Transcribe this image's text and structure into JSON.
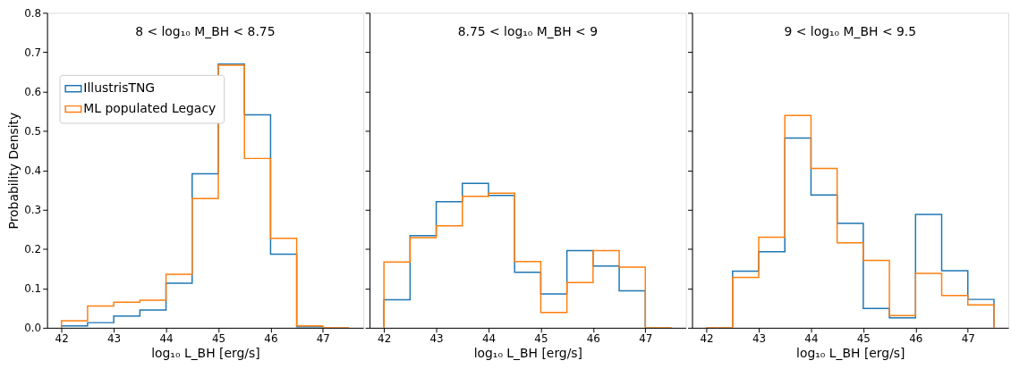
{
  "chart_data": [
    {
      "type": "histogram",
      "title": "8 < log₁₀ M_BH < 8.75",
      "xlabel": "log₁₀ L_BH  [erg/s]",
      "ylabel": "Probability Density",
      "bins": [
        42,
        42.5,
        43,
        43.5,
        44,
        44.5,
        45,
        45.5,
        46,
        46.5,
        47,
        47.5
      ],
      "series": [
        {
          "name": "IllustrisTNG",
          "color": "#1f77b4",
          "values": [
            0.005,
            0.013,
            0.03,
            0.045,
            0.113,
            0.391,
            0.67,
            0.541,
            0.187,
            0.002,
            0.0
          ]
        },
        {
          "name": "ML populated Legacy",
          "color": "#ff7f0e",
          "values": [
            0.018,
            0.055,
            0.065,
            0.07,
            0.136,
            0.328,
            0.667,
            0.43,
            0.227,
            0.005,
            0.0
          ]
        }
      ],
      "xlim": [
        41.725,
        47.775
      ],
      "ylim": [
        0,
        0.8
      ],
      "xticks": [
        42,
        43,
        44,
        45,
        46,
        47
      ],
      "yticks": [
        {
          "value": 0,
          "label": "0.0"
        },
        {
          "value": 0.1,
          "label": "0.1"
        },
        {
          "value": 0.2,
          "label": "0.2"
        },
        {
          "value": 0.3,
          "label": "0.3"
        },
        {
          "value": 0.4,
          "label": "0.4"
        },
        {
          "value": 0.5,
          "label": "0.5"
        },
        {
          "value": 0.6,
          "label": "0.6"
        },
        {
          "value": 0.7,
          "label": "0.7"
        },
        {
          "value": 0.8,
          "label": "0.8"
        }
      ],
      "legend": "top left"
    },
    {
      "type": "histogram",
      "title": "8.75 < log₁₀ M_BH < 9",
      "xlabel": "log₁₀ L_BH  [erg/s]",
      "bins": [
        42,
        42.5,
        43,
        43.5,
        44,
        44.5,
        45,
        45.5,
        46,
        46.5,
        47,
        47.5
      ],
      "series": [
        {
          "color": "#1f77b4",
          "values": [
            0.071,
            0.234,
            0.32,
            0.367,
            0.336,
            0.141,
            0.086,
            0.196,
            0.157,
            0.094,
            0.0
          ]
        },
        {
          "color": "#ff7f0e",
          "values": [
            0.167,
            0.229,
            0.259,
            0.334,
            0.342,
            0.168,
            0.039,
            0.115,
            0.196,
            0.154,
            0.0
          ]
        }
      ],
      "xlim": [
        41.725,
        47.775
      ],
      "ylim": [
        0,
        0.8
      ],
      "xticks": [
        42,
        43,
        44,
        45,
        46,
        47
      ],
      "yticks": [
        {
          "value": 0,
          "label": null
        },
        {
          "value": 0.1,
          "label": null
        },
        {
          "value": 0.2,
          "label": null
        },
        {
          "value": 0.3,
          "label": null
        },
        {
          "value": 0.4,
          "label": null
        },
        {
          "value": 0.5,
          "label": null
        },
        {
          "value": 0.6,
          "label": null
        },
        {
          "value": 0.7,
          "label": null
        },
        {
          "value": 0.8,
          "label": null
        }
      ],
      "tick_labels": "x"
    },
    {
      "type": "histogram",
      "title": "9 < log₁₀ M_BH < 9.5",
      "xlabel": "log₁₀ L_BH  [erg/s]",
      "bins": [
        42,
        42.5,
        43,
        43.5,
        44,
        44.5,
        45,
        45.5,
        46,
        46.5,
        47,
        47.5
      ],
      "series": [
        {
          "color": "#1f77b4",
          "values": [
            0.0,
            0.144,
            0.193,
            0.482,
            0.337,
            0.265,
            0.049,
            0.025,
            0.288,
            0.145,
            0.072
          ]
        },
        {
          "color": "#ff7f0e",
          "values": [
            0.0,
            0.128,
            0.23,
            0.539,
            0.405,
            0.216,
            0.171,
            0.031,
            0.138,
            0.082,
            0.058
          ]
        }
      ],
      "xlim": [
        41.725,
        47.775
      ],
      "ylim": [
        0,
        0.8
      ],
      "xticks": [
        42,
        43,
        44,
        45,
        46,
        47
      ],
      "yticks": [
        {
          "value": 0,
          "label": null
        },
        {
          "value": 0.1,
          "label": null
        },
        {
          "value": 0.2,
          "label": null
        },
        {
          "value": 0.3,
          "label": null
        },
        {
          "value": 0.4,
          "label": null
        },
        {
          "value": 0.5,
          "label": null
        },
        {
          "value": 0.6,
          "label": null
        },
        {
          "value": 0.7,
          "label": null
        },
        {
          "value": 0.8,
          "label": null
        }
      ],
      "tick_labels": "x"
    }
  ]
}
